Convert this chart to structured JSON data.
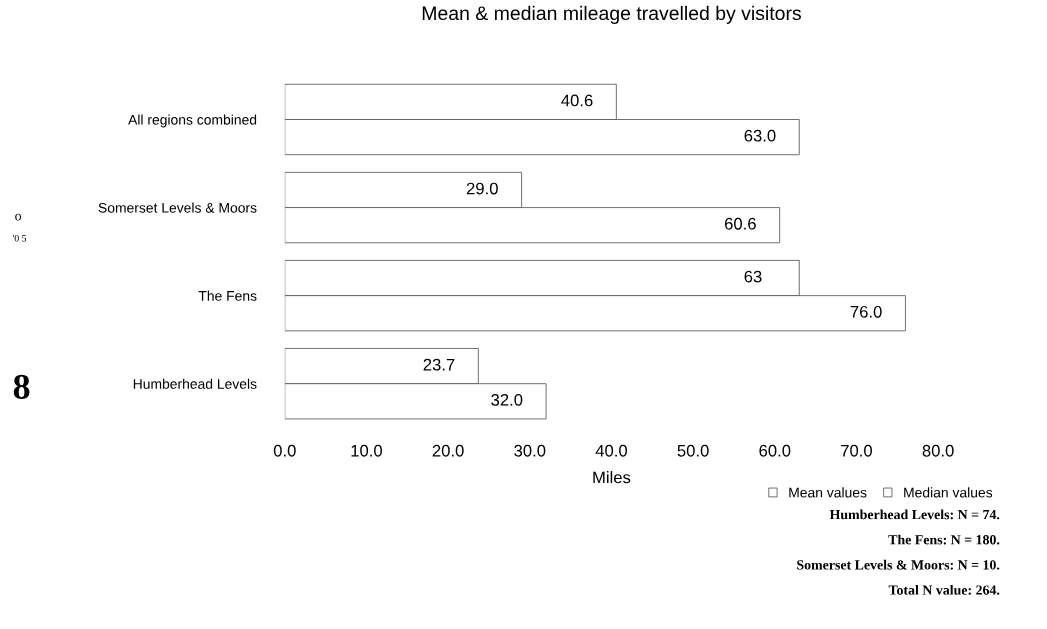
{
  "chart_data": {
    "type": "bar",
    "orientation": "horizontal",
    "title": "Mean & median mileage travelled by visitors",
    "xlabel": "Miles",
    "categories": [
      "All regions combined",
      "Somerset Levels & Moors",
      "The Fens",
      "Humberhead Levels"
    ],
    "series": [
      {
        "name": "Median values",
        "color": "#ffffff",
        "values": [
          40.6,
          29.0,
          63,
          23.7
        ],
        "value_labels": [
          "40.6",
          "29.0",
          "63",
          "23.7"
        ]
      },
      {
        "name": "Mean values",
        "color": "#ffffff",
        "values": [
          63.0,
          60.6,
          76.0,
          32.0
        ],
        "value_labels": [
          "63.0",
          "60.6",
          "76.0",
          "32.0"
        ]
      }
    ],
    "xlim": [
      0,
      80
    ],
    "xticks": [
      {
        "value": 0,
        "label": "0.0"
      },
      {
        "value": 10,
        "label": "10.0"
      },
      {
        "value": 20,
        "label": "20.0"
      },
      {
        "value": 30,
        "label": "30.0"
      },
      {
        "value": 40,
        "label": "40.0"
      },
      {
        "value": 50,
        "label": "50.0"
      },
      {
        "value": 60,
        "label": "60.0"
      },
      {
        "value": 70,
        "label": "70.0"
      },
      {
        "value": 80,
        "label": "80.0"
      }
    ],
    "grid": false,
    "legend": "bottom right",
    "annotations": [
      "Humberhead Levels: N = 74.",
      "The Fens: N = 180.",
      "Somerset Levels & Moors: N = 10.",
      "Total N value: 264.",
      "o",
      "'0 5",
      "8"
    ]
  }
}
